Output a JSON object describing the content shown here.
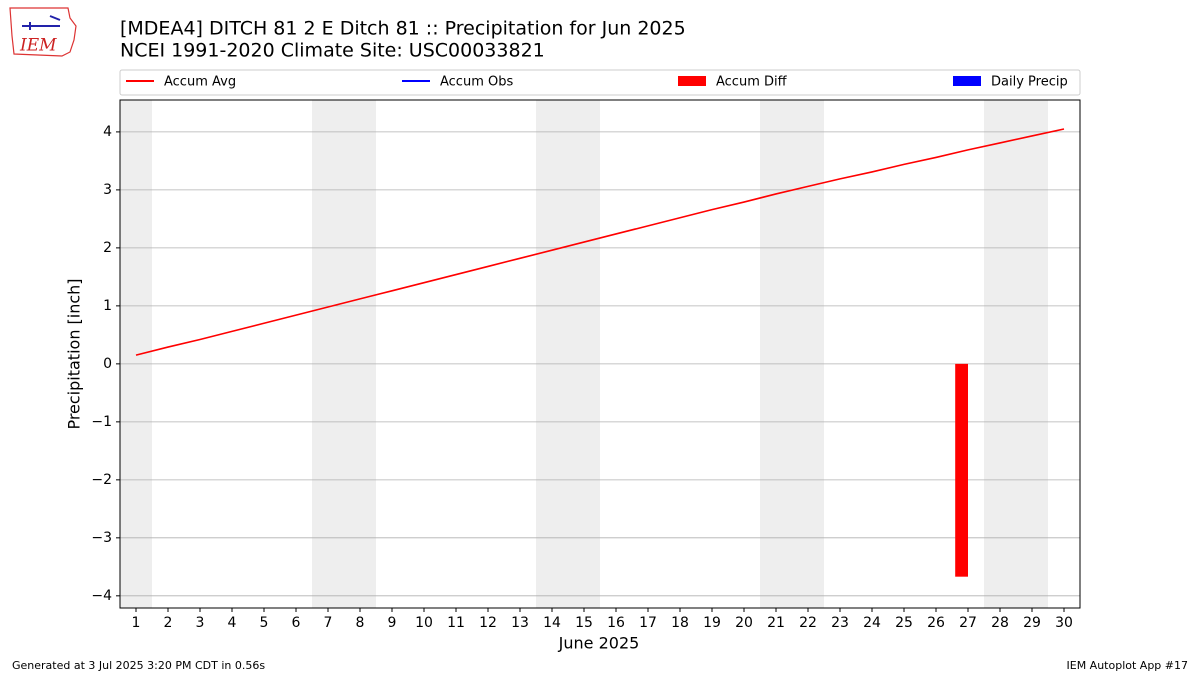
{
  "chart_data": {
    "type": "line",
    "title": "[MDEA4] DITCH 81  2 E Ditch 81 :: Precipitation for Jun 2025",
    "subtitle": "NCEI 1991-2020 Climate Site: USC00033821",
    "logo_text": "IEM",
    "xlabel": "June 2025",
    "ylabel": "Precipitation [inch]",
    "footer_left": "Generated at 3 Jul 2025 3:20 PM CDT in 0.56s",
    "footer_right": "IEM Autoplot App #17",
    "x": [
      1,
      2,
      3,
      4,
      5,
      6,
      7,
      8,
      9,
      10,
      11,
      12,
      13,
      14,
      15,
      16,
      17,
      18,
      19,
      20,
      21,
      22,
      23,
      24,
      25,
      26,
      27,
      28,
      29,
      30
    ],
    "xlim": [
      0.5,
      30.5
    ],
    "xticks": [
      1,
      2,
      3,
      4,
      5,
      6,
      7,
      8,
      9,
      10,
      11,
      12,
      13,
      14,
      15,
      16,
      17,
      18,
      19,
      20,
      21,
      22,
      23,
      24,
      25,
      26,
      27,
      28,
      29,
      30
    ],
    "ylim": [
      -4.21,
      4.55
    ],
    "yticks": [
      {
        "value": -4,
        "label": "−4"
      },
      {
        "value": -3,
        "label": "−3"
      },
      {
        "value": -2,
        "label": "−2"
      },
      {
        "value": -1,
        "label": "−1"
      },
      0,
      1,
      2,
      3,
      4
    ],
    "grid": true,
    "shaded_days": [
      1,
      7,
      8,
      14,
      15,
      21,
      22,
      28,
      29
    ],
    "shade_color": "#eeeeee",
    "series": [
      {
        "name": "Accum Avg",
        "color": "#ff0000",
        "style": "line",
        "values": [
          0.15,
          0.29,
          0.42,
          0.56,
          0.7,
          0.84,
          0.98,
          1.12,
          1.26,
          1.4,
          1.54,
          1.68,
          1.82,
          1.96,
          2.1,
          2.24,
          2.38,
          2.52,
          2.66,
          2.79,
          2.93,
          3.06,
          3.19,
          3.31,
          3.44,
          3.56,
          3.69,
          3.81,
          3.93,
          4.05
        ]
      },
      {
        "name": "Accum Obs",
        "color": "#0000ff",
        "style": "line",
        "values": [
          null,
          null,
          null,
          null,
          null,
          null,
          null,
          null,
          null,
          null,
          null,
          null,
          null,
          null,
          null,
          null,
          null,
          null,
          null,
          null,
          null,
          null,
          null,
          null,
          null,
          null,
          null,
          null,
          null,
          null
        ]
      },
      {
        "name": "Accum Diff",
        "color": "#ff0000",
        "style": "bar",
        "values": [
          null,
          null,
          null,
          null,
          null,
          null,
          null,
          null,
          null,
          null,
          null,
          null,
          null,
          null,
          null,
          null,
          null,
          null,
          null,
          null,
          null,
          null,
          null,
          null,
          null,
          null,
          -3.67,
          null,
          null,
          null
        ]
      },
      {
        "name": "Daily Precip",
        "color": "#0000ff",
        "style": "bar",
        "values": [
          null,
          null,
          null,
          null,
          null,
          null,
          null,
          null,
          null,
          null,
          null,
          null,
          null,
          null,
          null,
          null,
          null,
          null,
          null,
          null,
          null,
          null,
          null,
          null,
          null,
          null,
          null,
          null,
          null,
          null
        ]
      }
    ]
  }
}
